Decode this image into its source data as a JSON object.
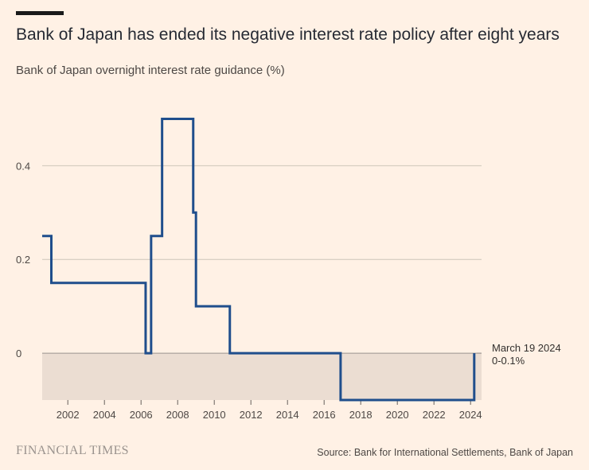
{
  "header": {
    "title": "Bank of Japan has ended its negative interest rate policy after eight years",
    "subtitle": "Bank of Japan overnight interest rate guidance (%)"
  },
  "footer": {
    "brand": "FINANCIAL TIMES",
    "source": "Source: Bank for International Settlements, Bank of Japan"
  },
  "colors": {
    "background": "#FFF1E5",
    "line": "#1F4E8C",
    "negative_band": "#EBDDD2",
    "grid": "#CEC6B9",
    "text": "#33302E"
  },
  "chart_data": {
    "type": "line",
    "interpolation": "step-after",
    "title": "Bank of Japan has ended its negative interest rate policy after eight years",
    "subtitle": "Bank of Japan overnight interest rate guidance (%)",
    "xlabel": "",
    "ylabel": "",
    "xlim": [
      2000.6,
      2024.6
    ],
    "ylim": [
      -0.1,
      0.55
    ],
    "x_ticks": [
      2002,
      2004,
      2006,
      2008,
      2010,
      2012,
      2014,
      2016,
      2018,
      2020,
      2022,
      2024
    ],
    "y_ticks": [
      0,
      0.2,
      0.4
    ],
    "y_tick_labels": [
      "0",
      "0.2",
      "0.4"
    ],
    "grid": true,
    "shaded_region": {
      "from": -0.1,
      "to": 0
    },
    "series": [
      {
        "name": "",
        "points": [
          {
            "x": 2000.6,
            "y": 0.25
          },
          {
            "x": 2001.1,
            "y": 0.15
          },
          {
            "x": 2006.25,
            "y": 0.0
          },
          {
            "x": 2006.55,
            "y": 0.25
          },
          {
            "x": 2007.15,
            "y": 0.5
          },
          {
            "x": 2008.85,
            "y": 0.3
          },
          {
            "x": 2009.0,
            "y": 0.1
          },
          {
            "x": 2010.85,
            "y": 0.0
          },
          {
            "x": 2016.9,
            "y": -0.1
          },
          {
            "x": 2024.2,
            "y": 0.0
          }
        ]
      }
    ],
    "annotation": {
      "x": 2024.2,
      "y": 0,
      "label": "March 19 2024",
      "value": "0-0.1%"
    }
  }
}
